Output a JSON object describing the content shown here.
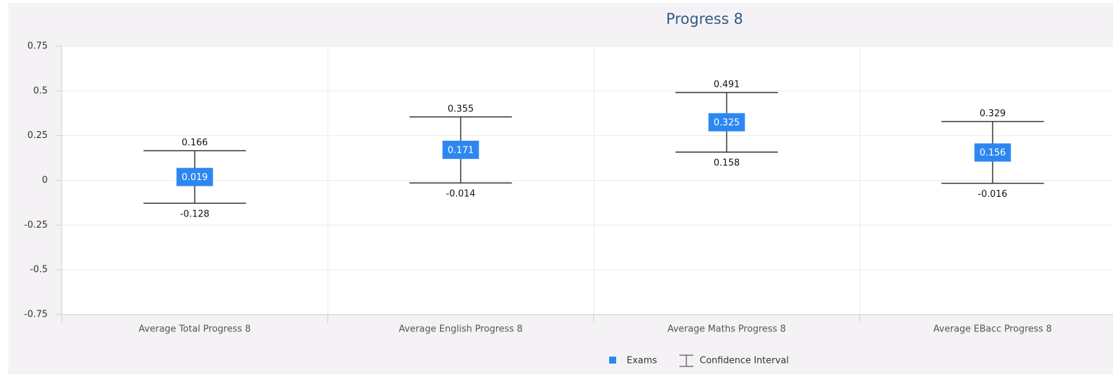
{
  "chart_data": {
    "type": "errorbar",
    "title": "Progress 8",
    "categories": [
      "Average Total Progress 8",
      "Average English Progress 8",
      "Average Maths Progress 8",
      "Average EBacc Progress 8"
    ],
    "series": [
      {
        "name": "Exams",
        "color": "#2d87f0",
        "values": [
          0.019,
          0.171,
          0.325,
          0.156
        ]
      }
    ],
    "error": {
      "name": "Confidence Interval",
      "color": "#333333",
      "upper": [
        0.166,
        0.355,
        0.491,
        0.329
      ],
      "lower": [
        -0.128,
        -0.014,
        0.158,
        -0.016
      ]
    },
    "ylim": [
      -0.75,
      0.75
    ],
    "yticks": [
      0.75,
      0.5,
      0.25,
      0,
      -0.25,
      -0.5,
      -0.75
    ],
    "grid": true
  }
}
